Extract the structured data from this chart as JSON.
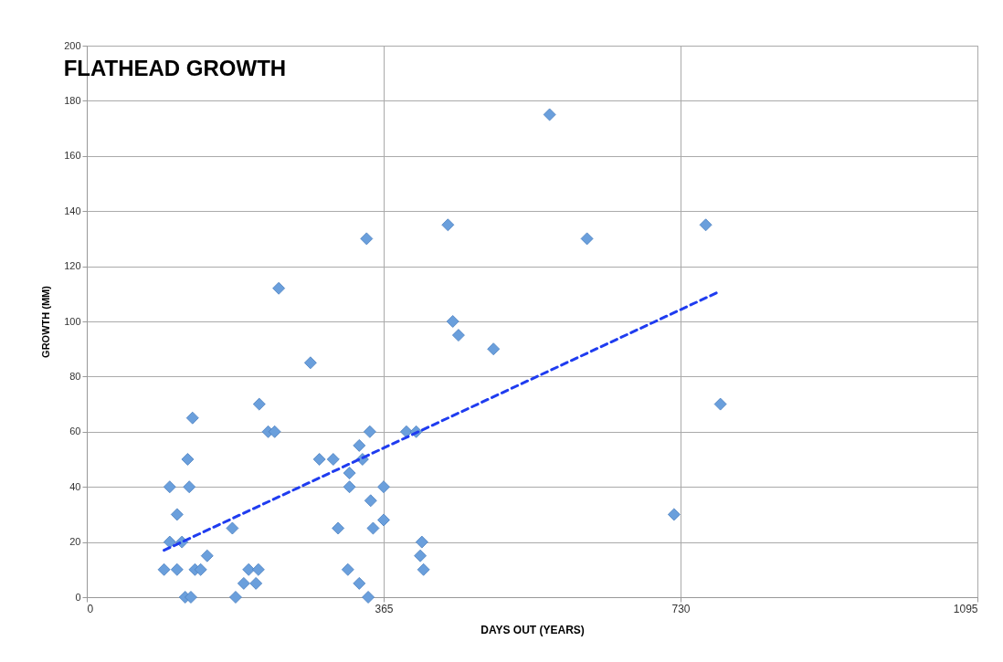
{
  "chart_data": {
    "type": "scatter",
    "title": "FLATHEAD GROWTH",
    "xlabel": "DAYS OUT (YEARS)",
    "ylabel": "GROWTH (MM)",
    "xlim": [
      0,
      1095
    ],
    "xticks": [
      0,
      365,
      730,
      1095
    ],
    "ylim": [
      0,
      200
    ],
    "yticks": [
      0,
      20,
      40,
      60,
      80,
      100,
      120,
      140,
      160,
      180,
      200
    ],
    "grid": true,
    "series": [
      {
        "color": "#6a9fdc",
        "marker": "diamond",
        "x": [
          95,
          102,
          102,
          111,
          111,
          117,
          121,
          124,
          126,
          128,
          130,
          133,
          140,
          148,
          179,
          183,
          193,
          199,
          208,
          211,
          212,
          223,
          231,
          236,
          275,
          286,
          303,
          309,
          321,
          323,
          323,
          335,
          335,
          339,
          344,
          346,
          348,
          349,
          352,
          365,
          365,
          393,
          405,
          410,
          412,
          414,
          444,
          450,
          457,
          500,
          569,
          615,
          722,
          761,
          779
        ],
        "values": [
          10,
          40,
          20,
          30,
          10,
          20,
          0,
          50,
          40,
          0,
          65,
          10,
          10,
          15,
          25,
          0,
          5,
          10,
          5,
          10,
          70,
          60,
          60,
          112,
          85,
          50,
          50,
          25,
          10,
          45,
          40,
          5,
          55,
          50,
          130,
          0,
          60,
          35,
          25,
          40,
          28,
          60,
          60,
          15,
          20,
          10,
          135,
          100,
          95,
          90,
          175,
          130,
          30,
          135,
          70
        ]
      },
      {
        "type": "line",
        "color": "#1f3cf0",
        "line_style": "dashed",
        "x": [
          95,
          779
        ],
        "values": [
          17,
          111
        ]
      }
    ]
  }
}
